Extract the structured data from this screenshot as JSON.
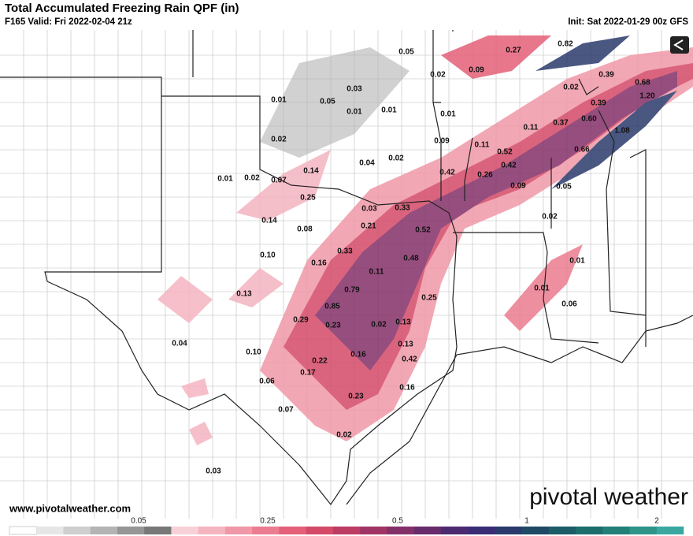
{
  "header": {
    "title": "Total Accumulated Freezing Rain QPF (in)",
    "valid": "F165 Valid: Fri 2022-02-04 21z",
    "init": "Init: Sat 2022-01-29 00z GFS"
  },
  "map_labels": [
    "0.05",
    "0.27",
    "0.82",
    "0.02",
    "0.09",
    "0.39",
    "0.68",
    "0.02",
    "1.20",
    "0.03",
    "0.01",
    "0.05",
    "0.39",
    "0.01",
    "0.01",
    "0.01",
    "0.37",
    "0.60",
    "0.11",
    "1.08",
    "0.02",
    "0.09",
    "0.11",
    "0.66",
    "0.52",
    "0.02",
    "0.04",
    "0.42",
    "0.14",
    "0.42",
    "0.26",
    "0.01",
    "0.02",
    "0.07",
    "0.09",
    "0.05",
    "0.25",
    "0.03",
    "0.33",
    "0.02",
    "0.14",
    "0.08",
    "0.21",
    "0.52",
    "0.33",
    "0.16",
    "0.10",
    "0.48",
    "0.01",
    "0.11",
    "0.79",
    "0.13",
    "0.01",
    "0.25",
    "0.06",
    "0.85",
    "0.29",
    "0.23",
    "0.02",
    "0.13",
    "0.04",
    "0.13",
    "0.10",
    "0.16",
    "0.22",
    "0.42",
    "0.17",
    "0.06",
    "0.16",
    "0.23",
    "0.07",
    "0.02",
    "0.03"
  ],
  "footer": {
    "website": "www.pivotalweather.com",
    "logo": "pivotal weather"
  },
  "colorbar": {
    "labels": [
      "0.05",
      "0.25",
      "0.5",
      "1",
      "2"
    ],
    "colors": [
      "#ffffff",
      "#e6e6e6",
      "#cfcfcf",
      "#b4b4b4",
      "#969696",
      "#787878",
      "#f8d0d8",
      "#f4b4c0",
      "#f098a8",
      "#ec7c90",
      "#e46078",
      "#d44a68",
      "#bc3c64",
      "#a03464",
      "#843068",
      "#682c6c",
      "#4c2a70",
      "#3a2c74",
      "#2a3a6c",
      "#1e4a66",
      "#1c5c66",
      "#1c6e6c",
      "#228078",
      "#2e9488",
      "#3aa8a0"
    ]
  }
}
